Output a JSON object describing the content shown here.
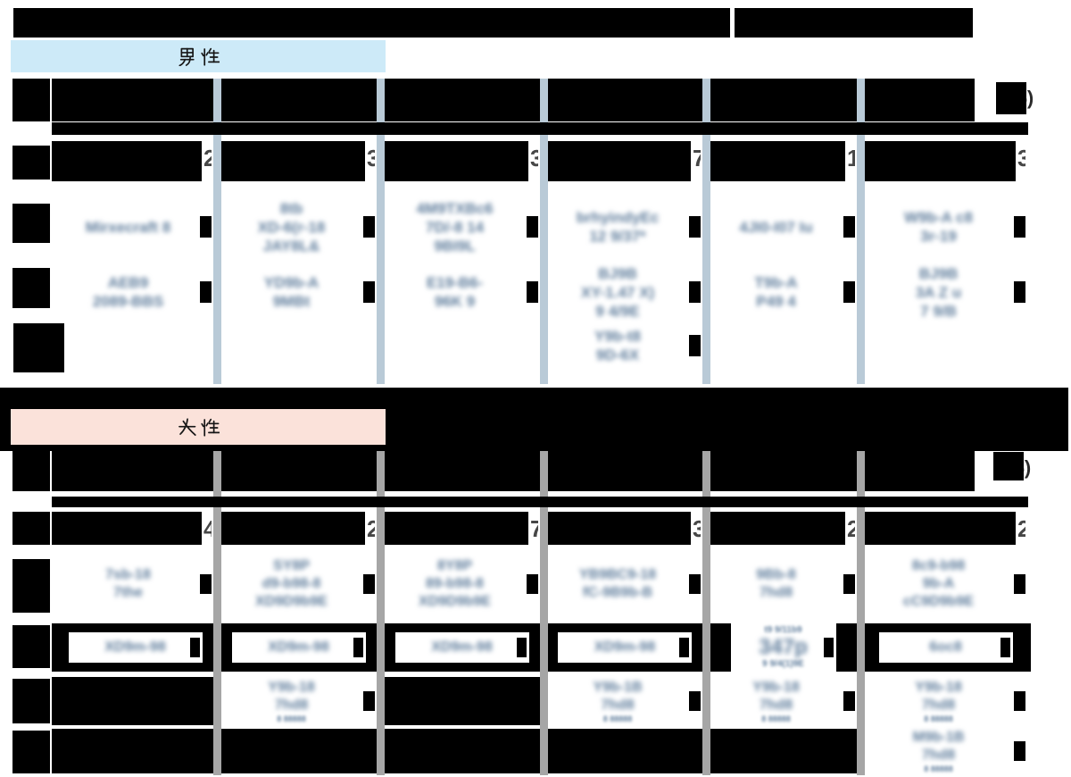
{
  "title_bar": {
    "redacted": true
  },
  "colors": {
    "male_header_bg": "#cdeaf8",
    "female_header_bg": "#fbe2da",
    "male_divider": "#b9cad7",
    "female_divider": "#a6a6a6",
    "blurred_text": "#5e7c9b",
    "redaction": "#000000"
  },
  "male": {
    "header_label": "男性",
    "unit_note": "(%)",
    "rank_fragments": [
      "2",
      "3",
      "3",
      "7",
      "1",
      "3"
    ],
    "rows": [
      {
        "name": "rank-1",
        "cells": [
          {
            "type": "text",
            "lines": [
              "Mirxecraft 8"
            ]
          },
          {
            "type": "text",
            "lines": [
              "8tb",
              "XD-6(r-18",
              "JAY8L&"
            ]
          },
          {
            "type": "text",
            "lines": [
              "4M9TXBc6",
              "7D/-8 14",
              "9BI9L"
            ]
          },
          {
            "type": "text",
            "lines": [
              "brhyindyEc",
              "12 9/37*"
            ]
          },
          {
            "type": "text",
            "lines": [
              "4JI0-I07 Iu"
            ]
          },
          {
            "type": "text",
            "lines": [
              "W9b-A c8",
              "3r-19"
            ]
          }
        ]
      },
      {
        "name": "rank-2",
        "cells": [
          {
            "type": "text",
            "lines": [
              "AEB9",
              "2089-BBS"
            ]
          },
          {
            "type": "text",
            "lines": [
              "YD9b-A",
              "9MBt"
            ]
          },
          {
            "type": "text",
            "lines": [
              "E19-B6-",
              "96K 9"
            ]
          },
          {
            "type": "text",
            "lines": [
              "BJ9B",
              "XY-1.47 X)",
              "9 4/9E"
            ]
          },
          {
            "type": "text",
            "lines": [
              "T9b-A",
              "P49 4"
            ]
          },
          {
            "type": "text",
            "lines": [
              "BJ9B",
              "3A Z u",
              "7 9/B"
            ]
          }
        ]
      },
      {
        "name": "rank-3",
        "cells": [
          {
            "type": "empty"
          },
          {
            "type": "empty"
          },
          {
            "type": "empty"
          },
          {
            "type": "text",
            "lines": [
              "Y9b-t8",
              "9D-6X"
            ]
          },
          {
            "type": "empty"
          },
          {
            "type": "empty"
          }
        ]
      }
    ]
  },
  "female": {
    "header_label": "女性",
    "unit_note": "(%)",
    "rank_fragments": [
      "4",
      "2",
      "7",
      "3",
      "2",
      "2"
    ],
    "rows": [
      {
        "name": "rank-1",
        "cells": [
          {
            "type": "text",
            "lines": [
              "7sb-18",
              "7the"
            ]
          },
          {
            "type": "text",
            "lines": [
              "SY8P",
              "d9-b98-8",
              "XD9D9b9E"
            ]
          },
          {
            "type": "text",
            "lines": [
              "8Y8P",
              "89-b98-8",
              "XD9D9b9E"
            ]
          },
          {
            "type": "text",
            "lines": [
              "YB9BC9-18",
              "fC-9B9b-B"
            ]
          },
          {
            "type": "text",
            "lines": [
              "9Bb-8",
              "7hd8"
            ]
          },
          {
            "type": "text",
            "lines": [
              "8c9-b98",
              "9b-A",
              "cC9D9b9E"
            ]
          }
        ]
      },
      {
        "name": "rank-2",
        "cells": [
          {
            "type": "barwin",
            "lines": [
              "XD9m-98"
            ]
          },
          {
            "type": "barwin",
            "lines": [
              "XD9m-98"
            ]
          },
          {
            "type": "barwin",
            "lines": [
              "XD9m-98"
            ]
          },
          {
            "type": "barwin",
            "lines": [
              "XD9m-98"
            ]
          },
          {
            "type": "barwin3",
            "lines": [
              "t9 9/11b9",
              "347p",
              "9 9/4(1)9E"
            ]
          },
          {
            "type": "barwin",
            "lines": [
              "6oc8"
            ]
          }
        ]
      },
      {
        "name": "rank-3",
        "cells": [
          {
            "type": "bar"
          },
          {
            "type": "text",
            "lines": [
              "Y9b-18",
              "7hd8"
            ],
            "sub": "8 88888"
          },
          {
            "type": "bar"
          },
          {
            "type": "text",
            "lines": [
              "Y9b-1B",
              "7hd8"
            ],
            "sub": "8 88888"
          },
          {
            "type": "text",
            "lines": [
              "Y9b-18",
              "7hd8"
            ],
            "sub": "8 88888"
          },
          {
            "type": "text",
            "lines": [
              "Y9b-18",
              "7hd8"
            ],
            "sub": "8 88888"
          }
        ]
      },
      {
        "name": "rank-4",
        "cells": [
          {
            "type": "bar"
          },
          {
            "type": "bar"
          },
          {
            "type": "bar"
          },
          {
            "type": "bar"
          },
          {
            "type": "bar"
          },
          {
            "type": "text",
            "lines": [
              "M9b-1B",
              "7hd8"
            ],
            "sub": "8 88888"
          }
        ]
      }
    ]
  }
}
